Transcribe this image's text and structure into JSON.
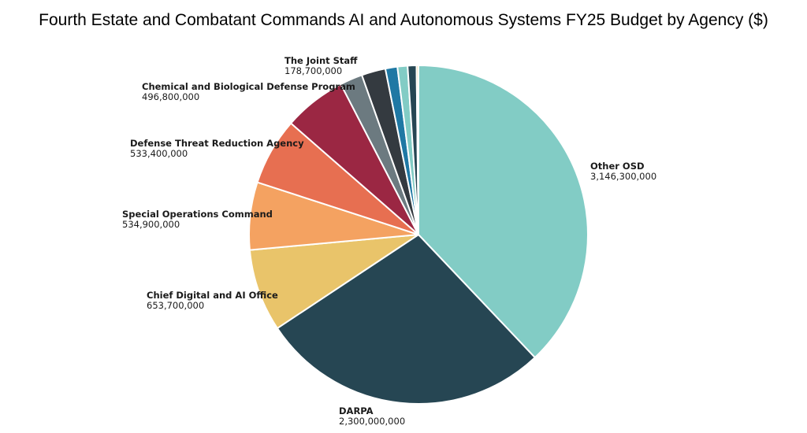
{
  "chart_data": {
    "type": "pie",
    "title": "Fourth Estate and Combatant Commands AI and Autonomous Systems FY25 Budget by Agency ($)",
    "start_angle_deg": 0,
    "direction": "clockwise",
    "slices": [
      {
        "label": "Other OSD",
        "value": 3146300000,
        "display_value": "3,146,300,000",
        "color": "#82CCC5",
        "show_label": true
      },
      {
        "label": "DARPA",
        "value": 2300000000,
        "display_value": "2,300,000,000",
        "color": "#264653",
        "show_label": true
      },
      {
        "label": "Chief Digital and AI Office",
        "value": 653700000,
        "display_value": "653,700,000",
        "color": "#E9C46A",
        "show_label": true
      },
      {
        "label": "Special Operations Command",
        "value": 534900000,
        "display_value": "534,900,000",
        "color": "#F4A261",
        "show_label": true
      },
      {
        "label": "Defense Threat Reduction Agency",
        "value": 533400000,
        "display_value": "533,400,000",
        "color": "#E76F51",
        "show_label": true
      },
      {
        "label": "Chemical and Biological Defense Program",
        "value": 496800000,
        "display_value": "496,800,000",
        "color": "#9B2743",
        "show_label": true
      },
      {
        "label": "The Joint Staff",
        "value": 178700000,
        "display_value": "178,700,000",
        "color": "#6C7A80",
        "show_label": true
      },
      {
        "label": "",
        "value": 190000000,
        "display_value": "",
        "color": "#343A40",
        "show_label": false
      },
      {
        "label": "",
        "value": 95000000,
        "display_value": "",
        "color": "#1F78A4",
        "show_label": false
      },
      {
        "label": "",
        "value": 80000000,
        "display_value": "",
        "color": "#82CCC5",
        "show_label": false
      },
      {
        "label": "",
        "value": 70000000,
        "display_value": "",
        "color": "#264653",
        "show_label": false
      },
      {
        "label": "",
        "value": 15000000,
        "display_value": "",
        "color": "#E9C46A",
        "show_label": false
      }
    ]
  }
}
